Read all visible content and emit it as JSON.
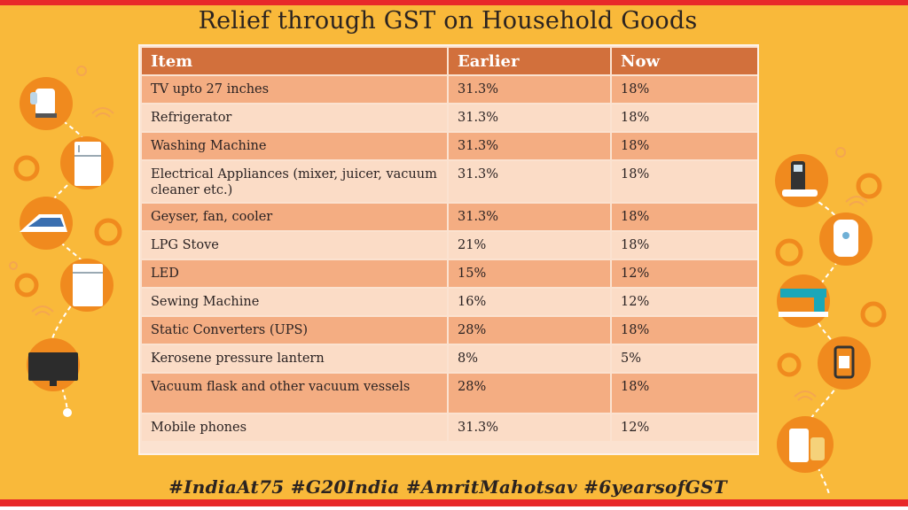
{
  "title": "Relief through GST on Household Goods",
  "table": {
    "headers": [
      "Item",
      "Earlier",
      "Now"
    ],
    "rows": [
      {
        "item": "TV upto 27 inches",
        "earlier": "31.3%",
        "now": "18%"
      },
      {
        "item": "Refrigerator",
        "earlier": "31.3%",
        "now": "18%"
      },
      {
        "item": "Washing Machine",
        "earlier": "31.3%",
        "now": "18%"
      },
      {
        "item": "Electrical Appliances (mixer, juicer, vacuum cleaner etc.)",
        "earlier": "31.3%",
        "now": "18%"
      },
      {
        "item": "Geyser, fan, cooler",
        "earlier": "31.3%",
        "now": "18%"
      },
      {
        "item": "LPG Stove",
        "earlier": "21%",
        "now": "18%"
      },
      {
        "item": "LED",
        "earlier": "15%",
        "now": "12%"
      },
      {
        "item": "Sewing Machine",
        "earlier": "16%",
        "now": "12%"
      },
      {
        "item": "Static Converters (UPS)",
        "earlier": "28%",
        "now": "18%"
      },
      {
        "item": "Kerosene pressure lantern",
        "earlier": "8%",
        "now": "5%"
      },
      {
        "item": "Vacuum flask and other vacuum vessels",
        "earlier": "28%",
        "now": "18%"
      },
      {
        "item": "Mobile phones",
        "earlier": "31.3%",
        "now": "12%"
      }
    ]
  },
  "hashtags": "#IndiaAt75  #G20India  #AmritMahotsav #6yearsofGST",
  "colors": {
    "background": "#f9b93a",
    "frame": "#e8292a",
    "header": "#d2703c",
    "row_dark": "#f4ad82",
    "row_light": "#fbdcc6",
    "icon_circle": "#f08a1e"
  },
  "icons": {
    "left": [
      "kettle-icon",
      "refrigerator-icon",
      "iron-icon",
      "dishwasher-icon",
      "television-icon"
    ],
    "right": [
      "cordless-phone-icon",
      "water-heater-icon",
      "sewing-machine-icon",
      "lantern-icon",
      "mixer-grinder-icon"
    ]
  }
}
